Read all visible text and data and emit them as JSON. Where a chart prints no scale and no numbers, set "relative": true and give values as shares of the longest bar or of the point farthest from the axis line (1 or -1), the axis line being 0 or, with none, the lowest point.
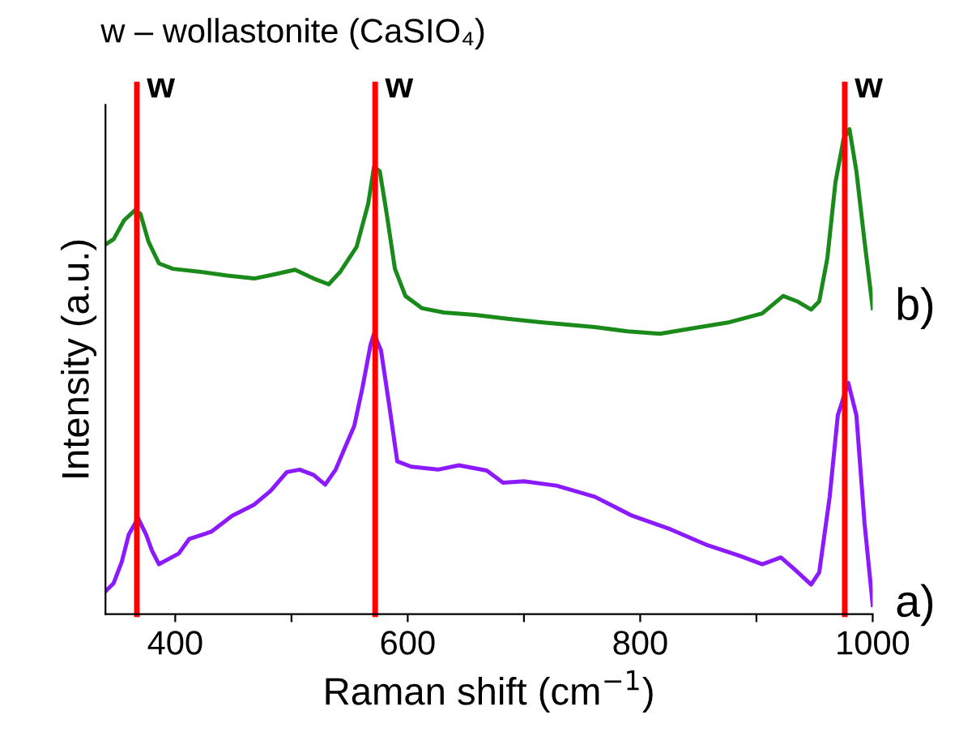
{
  "chart_data": {
    "type": "line",
    "title": "w – wollastonite (CaSIO₄)",
    "xlabel": "Raman shift (cm$^{−1}$)",
    "ylabel": "Intensity (a.u.)",
    "relative": true,
    "xlim": [
      340,
      1000
    ],
    "xticks": [
      400,
      {
        "value": 500,
        "label": null
      },
      600,
      {
        "value": 700,
        "label": null
      },
      800,
      {
        "value": 900,
        "label": null
      },
      1000
    ],
    "tick_labels": "x",
    "grid": false,
    "legend": false,
    "line_style": "solid",
    "marker": "none",
    "series": [
      {
        "name": "b)",
        "color": "#1a8a1a",
        "x": [
          340,
          347,
          356,
          365,
          370,
          377,
          386,
          398,
          421,
          445,
          468,
          486,
          503,
          519,
          532,
          542,
          556,
          566,
          571,
          576,
          582,
          589,
          598,
          612,
          631,
          658,
          686,
          714,
          761,
          789,
          817,
          844,
          877,
          905,
          923,
          935,
          947,
          954,
          961,
          968,
          975,
          980,
          986,
          993,
          1000
        ],
        "values": [
          0.762,
          0.773,
          0.812,
          0.832,
          0.826,
          0.768,
          0.723,
          0.712,
          0.706,
          0.698,
          0.692,
          0.701,
          0.71,
          0.692,
          0.68,
          0.706,
          0.757,
          0.846,
          0.922,
          0.913,
          0.824,
          0.712,
          0.656,
          0.631,
          0.622,
          0.617,
          0.609,
          0.602,
          0.592,
          0.583,
          0.578,
          0.589,
          0.602,
          0.62,
          0.656,
          0.645,
          0.628,
          0.645,
          0.734,
          0.891,
          0.98,
          1.0,
          0.913,
          0.768,
          0.631
        ]
      },
      {
        "name": "a)",
        "color": "#8b1aff",
        "x": [
          340,
          347,
          354,
          360,
          368,
          375,
          380,
          386,
          403,
          412,
          431,
          449,
          468,
          482,
          496,
          507,
          519,
          529,
          538,
          545,
          554,
          561,
          568,
          571,
          577,
          584,
          591,
          603,
          626,
          644,
          668,
          682,
          700,
          728,
          761,
          793,
          826,
          858,
          886,
          905,
          921,
          933,
          947,
          954,
          963,
          970,
          979,
          986,
          993,
          1000
        ],
        "values": [
          0.047,
          0.064,
          0.108,
          0.164,
          0.198,
          0.164,
          0.131,
          0.103,
          0.125,
          0.155,
          0.17,
          0.203,
          0.226,
          0.254,
          0.293,
          0.298,
          0.287,
          0.267,
          0.298,
          0.338,
          0.388,
          0.466,
          0.555,
          0.578,
          0.544,
          0.432,
          0.315,
          0.304,
          0.298,
          0.307,
          0.296,
          0.271,
          0.274,
          0.265,
          0.242,
          0.203,
          0.175,
          0.142,
          0.12,
          0.103,
          0.117,
          0.092,
          0.061,
          0.086,
          0.242,
          0.41,
          0.477,
          0.41,
          0.187,
          0.019
        ]
      }
    ],
    "ref_lines": [
      {
        "axis": "x",
        "value": 367,
        "label": "w",
        "color": "#ff0000"
      },
      {
        "axis": "x",
        "value": 572,
        "label": "w",
        "color": "#ff0000"
      },
      {
        "axis": "x",
        "value": 976,
        "label": "w",
        "color": "#ff0000"
      }
    ]
  }
}
